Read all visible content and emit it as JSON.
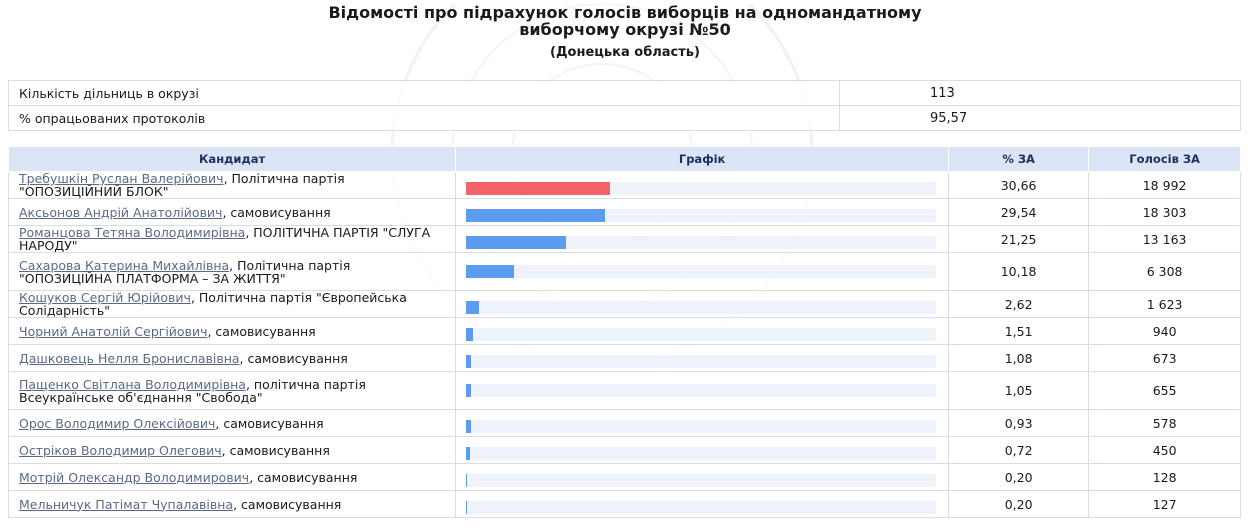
{
  "title": "Відомості про підрахунок голосів виборців на одномандатному виборчому окрузі №50",
  "region": "(Донецька область)",
  "summary": [
    {
      "label": "Кількість дільниць в окрузі",
      "value": "113"
    },
    {
      "label": "% опрацьованих протоколів",
      "value": "95,57"
    }
  ],
  "headers": {
    "candidate": "Кандидат",
    "graph": "Графік",
    "pct": "% ЗА",
    "votes": "Голосів ЗА"
  },
  "colors": {
    "leader": "#f4636a",
    "other": "#5b9cf0",
    "track": "#eef2fa"
  },
  "rows": [
    {
      "name": "Требушкін Руслан Валерійович",
      "party": ", Політична партія \"ОПОЗИЦІЙНИЙ БЛОК\"",
      "pct": "30,66",
      "votes": "18 992",
      "share": 30.66,
      "leader": true
    },
    {
      "name": "Аксьонов Андрій Анатолійович",
      "party": ", самовисування",
      "pct": "29,54",
      "votes": "18 303",
      "share": 29.54,
      "leader": false
    },
    {
      "name": "Романцова Тетяна Володимирівна",
      "party": ", ПОЛІТИЧНА ПАРТІЯ \"СЛУГА НАРОДУ\"",
      "pct": "21,25",
      "votes": "13 163",
      "share": 21.25,
      "leader": false
    },
    {
      "name": "Сахарова Катерина Михайлівна",
      "party": ", Політична партія \"ОПОЗИЦІЙНА ПЛАТФОРМА – ЗА ЖИТТЯ\"",
      "pct": "10,18",
      "votes": "6 308",
      "share": 10.18,
      "leader": false
    },
    {
      "name": "Кошуков Сергій Юрійович",
      "party": ", Політична партія \"Європейська Солідарність\"",
      "pct": "2,62",
      "votes": "1 623",
      "share": 2.62,
      "leader": false
    },
    {
      "name": "Чорний Анатолій Сергійович",
      "party": ", самовисування",
      "pct": "1,51",
      "votes": "940",
      "share": 1.51,
      "leader": false
    },
    {
      "name": "Дашковець Нелля Брониславівна",
      "party": ", самовисування",
      "pct": "1,08",
      "votes": "673",
      "share": 1.08,
      "leader": false
    },
    {
      "name": "Пащенко Світлана Володимирівна",
      "party": ", політична партія Всеукраїнське об'єднання \"Свобода\"",
      "pct": "1,05",
      "votes": "655",
      "share": 1.05,
      "leader": false
    },
    {
      "name": "Орос Володимир Олексійович",
      "party": ", самовисування",
      "pct": "0,93",
      "votes": "578",
      "share": 0.93,
      "leader": false
    },
    {
      "name": "Остріков Володимир Олегович",
      "party": ", самовисування",
      "pct": "0,72",
      "votes": "450",
      "share": 0.72,
      "leader": false
    },
    {
      "name": "Мотрій Олександр Володимирович",
      "party": ", самовисування",
      "pct": "0,20",
      "votes": "128",
      "share": 0.2,
      "leader": false
    },
    {
      "name": "Мельничук Патімат Чупалавівна",
      "party": ", самовисування",
      "pct": "0,20",
      "votes": "127",
      "share": 0.2,
      "leader": false
    }
  ]
}
